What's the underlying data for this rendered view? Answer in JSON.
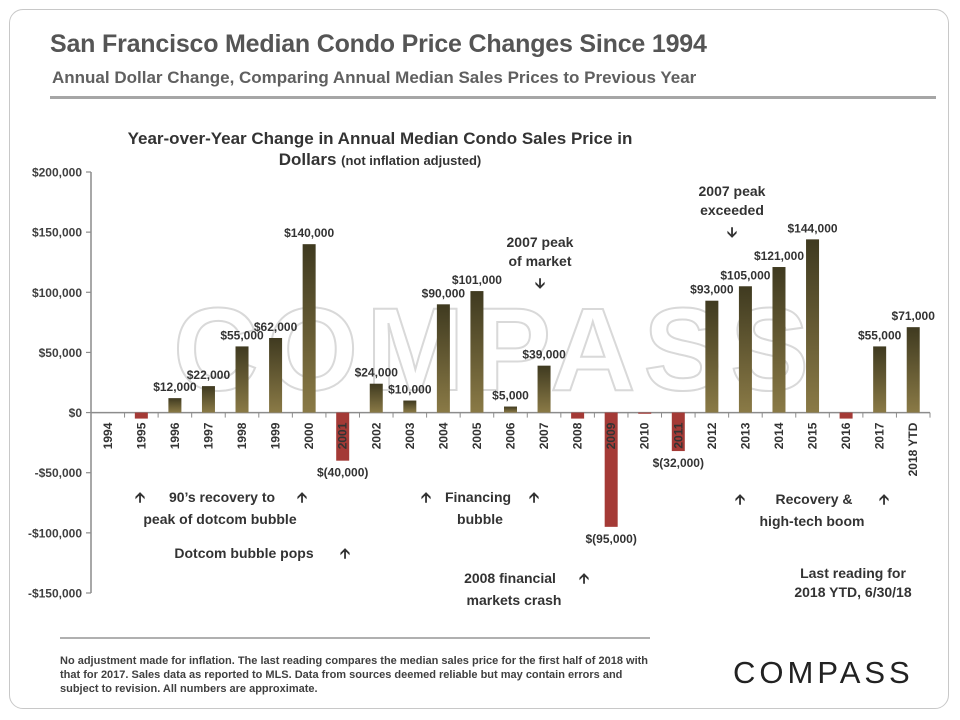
{
  "header": {
    "title": "San Francisco Median Condo Price Changes Since 1994",
    "subtitle": "Annual Dollar Change, Comparing Annual Median Sales Prices to Previous Year"
  },
  "chart_data": {
    "type": "bar",
    "title": "Year-over-Year Change in Annual Median Condo Sales Price in Dollars",
    "title_note": "(not inflation adjusted)",
    "categories": [
      "1994",
      "1995",
      "1996",
      "1997",
      "1998",
      "1999",
      "2000",
      "2001",
      "2002",
      "2003",
      "2004",
      "2005",
      "2006",
      "2007",
      "2008",
      "2009",
      "2010",
      "2011",
      "2012",
      "2013",
      "2014",
      "2015",
      "2016",
      "2017",
      "2018 YTD"
    ],
    "values": [
      0,
      -5000,
      12000,
      22000,
      55000,
      62000,
      140000,
      -40000,
      24000,
      10000,
      90000,
      101000,
      5000,
      39000,
      -5000,
      -95000,
      -1000,
      -32000,
      93000,
      105000,
      121000,
      144000,
      -5000,
      55000,
      71000
    ],
    "data_labels": [
      "",
      "",
      "$12,000",
      "$22,000",
      "$55,000",
      "$62,000",
      "$140,000",
      "$(40,000)",
      "$24,000",
      "$10,000",
      "$90,000",
      "$101,000",
      "$5,000",
      "$39,000",
      "",
      "$(95,000)",
      "",
      "$(32,000)",
      "$93,000",
      "$105,000",
      "$121,000",
      "$144,000",
      "",
      "$55,000",
      "$71,000"
    ],
    "y_ticks": [
      200000,
      150000,
      100000,
      50000,
      0,
      -50000,
      -100000,
      -150000
    ],
    "y_tick_labels": [
      "$200,000",
      "$150,000",
      "$100,000",
      "$50,000",
      "$0",
      "-$50,000",
      "-$100,000",
      "-$150,000"
    ],
    "ylim": [
      -150000,
      200000
    ],
    "grid": false,
    "colors": {
      "positive": "#8a7a46",
      "positive_dark": "#3f3a20",
      "negative": "#a43a36"
    }
  },
  "annotations": {
    "peak_2007_line1": "2007 peak",
    "peak_2007_line2": "of market",
    "peak_exceeded_line1": "2007 peak",
    "peak_exceeded_line2": "exceeded",
    "nineties_line1": "90’s recovery to",
    "nineties_line2": "peak of dotcom bubble",
    "dotcom_pops": "Dotcom bubble pops",
    "financing_line1": "Financing",
    "financing_line2": "bubble",
    "crash_line1": "2008 financial",
    "crash_line2": "markets crash",
    "recovery_line1": "Recovery &",
    "recovery_line2": "high-tech boom",
    "last_reading_line1": "Last reading for",
    "last_reading_line2": "2018 YTD, 6/30/18",
    "watermark": "COMPASS",
    "arrow_up": "🡩",
    "arrow_down": "🡫"
  },
  "footnote": "No adjustment made for inflation. The last reading compares the median sales price for the first half of 2018 with that for 2017. Sales data as reported to MLS. Data from sources deemed reliable but may contain errors and subject to revision. All numbers are approximate.",
  "logo": "COMPASS"
}
